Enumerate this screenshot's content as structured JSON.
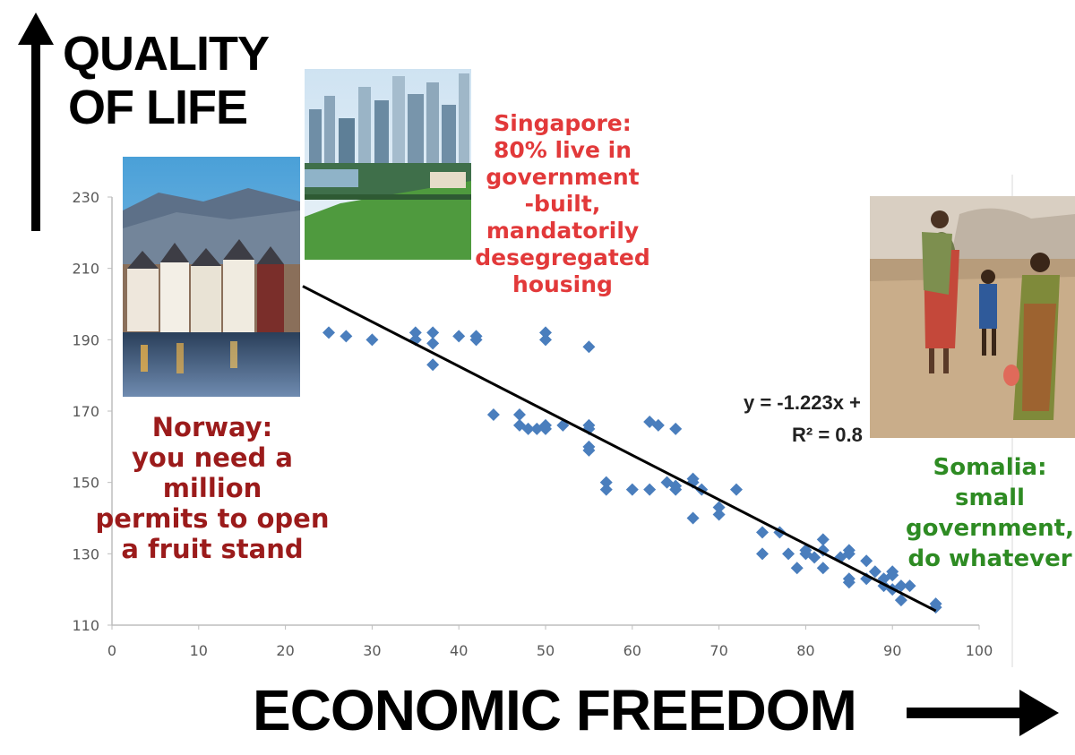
{
  "y_title": [
    "QUALITY",
    "OF LIFE"
  ],
  "x_title": "ECONOMIC FREEDOM",
  "annotations": {
    "norway": [
      "Norway:",
      "you need a",
      "million",
      "permits to open",
      "a fruit stand"
    ],
    "singapore": [
      "Singapore:",
      "80% live in",
      "government",
      "-built,",
      "mandatorily",
      "desegregated",
      "housing"
    ],
    "somalia": [
      "Somalia:",
      "small",
      "government,",
      "do whatever"
    ],
    "equation": "y = -1.223x +",
    "r_squared": "R² = 0.8"
  },
  "colors": {
    "norway_text": "#9b1b1b",
    "singapore_text": "#e2393a",
    "somalia_text": "#2e8b23",
    "points": "#4a7ebd",
    "trendline": "#000000"
  },
  "chart_data": {
    "type": "scatter",
    "xlim": [
      0,
      100
    ],
    "ylim": [
      110,
      230
    ],
    "x_ticks": [
      0,
      10,
      20,
      30,
      40,
      50,
      60,
      70,
      80,
      90,
      100
    ],
    "y_ticks": [
      110,
      130,
      150,
      170,
      190,
      210,
      230
    ],
    "grid": false,
    "points": [
      [
        25,
        192
      ],
      [
        27,
        191
      ],
      [
        30,
        190
      ],
      [
        35,
        192
      ],
      [
        35,
        190
      ],
      [
        37,
        192
      ],
      [
        37,
        189
      ],
      [
        37,
        183
      ],
      [
        40,
        191
      ],
      [
        42,
        191
      ],
      [
        42,
        190
      ],
      [
        44,
        169
      ],
      [
        47,
        169
      ],
      [
        47,
        166
      ],
      [
        48,
        165
      ],
      [
        49,
        165
      ],
      [
        50,
        192
      ],
      [
        50,
        190
      ],
      [
        50,
        166
      ],
      [
        50,
        165
      ],
      [
        52,
        166
      ],
      [
        55,
        188
      ],
      [
        55,
        166
      ],
      [
        55,
        165
      ],
      [
        55,
        160
      ],
      [
        55,
        159
      ],
      [
        57,
        150
      ],
      [
        57,
        148
      ],
      [
        60,
        148
      ],
      [
        62,
        167
      ],
      [
        62,
        148
      ],
      [
        63,
        166
      ],
      [
        64,
        150
      ],
      [
        65,
        165
      ],
      [
        65,
        149
      ],
      [
        65,
        148
      ],
      [
        67,
        151
      ],
      [
        67,
        150
      ],
      [
        67,
        140
      ],
      [
        68,
        148
      ],
      [
        70,
        143
      ],
      [
        70,
        141
      ],
      [
        72,
        148
      ],
      [
        75,
        136
      ],
      [
        75,
        130
      ],
      [
        77,
        136
      ],
      [
        78,
        130
      ],
      [
        79,
        126
      ],
      [
        80,
        131
      ],
      [
        80,
        130
      ],
      [
        81,
        129
      ],
      [
        82,
        134
      ],
      [
        82,
        131
      ],
      [
        82,
        126
      ],
      [
        84,
        129
      ],
      [
        85,
        131
      ],
      [
        85,
        130
      ],
      [
        85,
        123
      ],
      [
        85,
        122
      ],
      [
        87,
        128
      ],
      [
        87,
        123
      ],
      [
        88,
        125
      ],
      [
        89,
        123
      ],
      [
        89,
        121
      ],
      [
        90,
        125
      ],
      [
        90,
        124
      ],
      [
        90,
        120
      ],
      [
        91,
        121
      ],
      [
        91,
        117
      ],
      [
        92,
        121
      ],
      [
        95,
        116
      ],
      [
        95,
        115
      ]
    ],
    "trendline": {
      "x": [
        22,
        95
      ],
      "y": [
        205,
        114
      ]
    }
  }
}
